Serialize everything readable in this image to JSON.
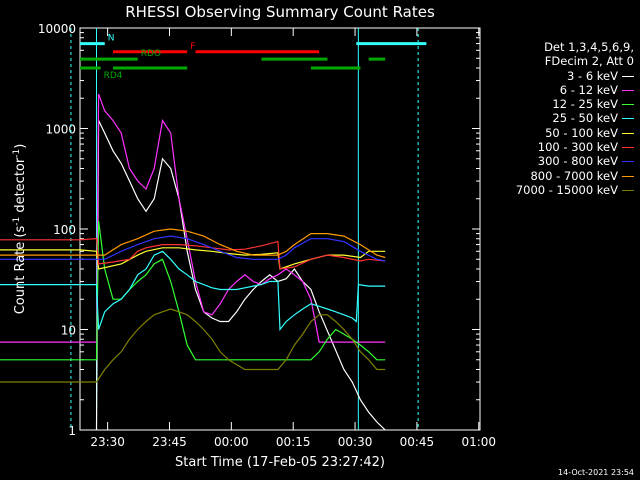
{
  "chart_data": {
    "type": "line",
    "title": "RHESSI Observing Summary Count Rates",
    "xlabel": "Start Time (17-Feb-05 23:27:42)",
    "ylabel_main": "Count Rate (s",
    "ylabel_sup1": "-1",
    "ylabel_mid": " detector",
    "ylabel_sup2": "-1",
    "ylabel_end": ")",
    "ylog": true,
    "ylim": [
      1,
      10000
    ],
    "x_minutes_range": [
      -20,
      77
    ],
    "x_tick_labels": [
      {
        "label": "23:30",
        "minute": 0
      },
      {
        "label": "23:45",
        "minute": 15
      },
      {
        "label": "00:00",
        "minute": 30
      },
      {
        "label": "00:15",
        "minute": 45
      },
      {
        "label": "00:30",
        "minute": 60
      },
      {
        "label": "00:45",
        "minute": 75
      },
      {
        "label": "01:00",
        "minute": 90
      }
    ],
    "y_tick_labels": [
      "1",
      "10",
      "100",
      "1000",
      "10000"
    ],
    "legend_header": [
      "Det 1,3,4,5,6,9,",
      "FDecim 2, Att 0"
    ],
    "series": [
      {
        "name": "3 - 6 keV",
        "color": "#ffffff",
        "points": [
          [
            -16,
            1.0
          ],
          [
            -15.5,
            1200
          ],
          [
            -14,
            900
          ],
          [
            -12,
            600
          ],
          [
            -10,
            450
          ],
          [
            -8,
            300
          ],
          [
            -6,
            200
          ],
          [
            -4,
            150
          ],
          [
            -2,
            200
          ],
          [
            0,
            500
          ],
          [
            2,
            400
          ],
          [
            4,
            200
          ],
          [
            6,
            60
          ],
          [
            8,
            25
          ],
          [
            10,
            15
          ],
          [
            12,
            13
          ],
          [
            14,
            12
          ],
          [
            16,
            12
          ],
          [
            18,
            15
          ],
          [
            20,
            20
          ],
          [
            22,
            25
          ],
          [
            24,
            30
          ],
          [
            26,
            35
          ],
          [
            28,
            30
          ],
          [
            30,
            32
          ],
          [
            32,
            40
          ],
          [
            34,
            30
          ],
          [
            36,
            25
          ],
          [
            38,
            15
          ],
          [
            44,
            4
          ],
          [
            46,
            3
          ],
          [
            48,
            2
          ],
          [
            50,
            1.5
          ],
          [
            52,
            1.2
          ],
          [
            54,
            1.0
          ]
        ]
      },
      {
        "name": "6 - 12 keV",
        "color": "#ff33ff",
        "points": [
          [
            -40,
            7.5
          ],
          [
            -20,
            7.5
          ],
          [
            -16,
            7.5
          ],
          [
            -15.5,
            2200
          ],
          [
            -14,
            1500
          ],
          [
            -12,
            1200
          ],
          [
            -10,
            900
          ],
          [
            -8,
            400
          ],
          [
            -6,
            300
          ],
          [
            -4,
            250
          ],
          [
            -2,
            400
          ],
          [
            0,
            1200
          ],
          [
            2,
            900
          ],
          [
            4,
            200
          ],
          [
            6,
            80
          ],
          [
            8,
            30
          ],
          [
            10,
            15
          ],
          [
            12,
            14
          ],
          [
            14,
            18
          ],
          [
            16,
            25
          ],
          [
            18,
            30
          ],
          [
            20,
            35
          ],
          [
            22,
            30
          ],
          [
            24,
            28
          ],
          [
            26,
            32
          ],
          [
            28,
            35
          ],
          [
            30,
            40
          ],
          [
            32,
            35
          ],
          [
            34,
            30
          ],
          [
            36,
            20
          ],
          [
            38,
            7.5
          ],
          [
            46,
            7.5
          ],
          [
            48,
            7.5
          ],
          [
            52,
            7.5
          ],
          [
            54,
            7.5
          ]
        ]
      },
      {
        "name": "12 - 25 keV",
        "color": "#33ff33",
        "points": [
          [
            -40,
            5
          ],
          [
            -20,
            5
          ],
          [
            -16,
            5
          ],
          [
            -15.5,
            120
          ],
          [
            -14,
            40
          ],
          [
            -12,
            20
          ],
          [
            -10,
            20
          ],
          [
            -8,
            25
          ],
          [
            -6,
            30
          ],
          [
            -4,
            35
          ],
          [
            -2,
            45
          ],
          [
            0,
            50
          ],
          [
            2,
            30
          ],
          [
            4,
            15
          ],
          [
            6,
            7
          ],
          [
            8,
            5
          ],
          [
            10,
            5
          ],
          [
            12,
            5
          ],
          [
            20,
            5
          ],
          [
            28,
            5
          ],
          [
            32,
            5
          ],
          [
            36,
            5
          ],
          [
            38,
            6
          ],
          [
            40,
            8
          ],
          [
            42,
            10
          ],
          [
            44,
            9
          ],
          [
            46,
            8
          ],
          [
            48,
            7
          ],
          [
            50,
            6
          ],
          [
            52,
            5
          ],
          [
            54,
            5
          ]
        ]
      },
      {
        "name": "25 - 50 keV",
        "color": "#33ffff",
        "points": [
          [
            -40,
            28
          ],
          [
            -20,
            28
          ],
          [
            -16,
            28
          ],
          [
            -15.5,
            10
          ],
          [
            -14,
            15
          ],
          [
            -12,
            18
          ],
          [
            -10,
            20
          ],
          [
            -8,
            25
          ],
          [
            -6,
            35
          ],
          [
            -4,
            40
          ],
          [
            -2,
            55
          ],
          [
            0,
            60
          ],
          [
            2,
            50
          ],
          [
            4,
            40
          ],
          [
            6,
            35
          ],
          [
            8,
            30
          ],
          [
            10,
            28
          ],
          [
            12,
            26
          ],
          [
            14,
            25
          ],
          [
            16,
            25
          ],
          [
            18,
            25
          ],
          [
            20,
            26
          ],
          [
            22,
            27
          ],
          [
            24,
            28
          ],
          [
            26,
            30
          ],
          [
            28,
            30
          ],
          [
            28.5,
            10
          ],
          [
            30,
            12
          ],
          [
            32,
            14
          ],
          [
            34,
            16
          ],
          [
            36,
            18
          ],
          [
            38,
            17
          ],
          [
            40,
            16
          ],
          [
            42,
            15
          ],
          [
            44,
            14
          ],
          [
            46,
            13
          ],
          [
            47,
            12
          ],
          [
            47.5,
            28
          ],
          [
            50,
            27
          ],
          [
            54,
            27
          ]
        ]
      },
      {
        "name": "50 - 100 keV",
        "color": "#ffff33",
        "points": [
          [
            -40,
            62
          ],
          [
            -20,
            62
          ],
          [
            -16,
            60
          ],
          [
            -15.5,
            40
          ],
          [
            -10,
            45
          ],
          [
            -6,
            55
          ],
          [
            -4,
            60
          ],
          [
            0,
            65
          ],
          [
            4,
            65
          ],
          [
            8,
            62
          ],
          [
            12,
            60
          ],
          [
            16,
            57
          ],
          [
            20,
            55
          ],
          [
            24,
            56
          ],
          [
            28,
            58
          ],
          [
            28.5,
            40
          ],
          [
            32,
            45
          ],
          [
            36,
            50
          ],
          [
            40,
            55
          ],
          [
            44,
            55
          ],
          [
            48,
            52
          ],
          [
            50,
            60
          ],
          [
            54,
            60
          ]
        ]
      },
      {
        "name": "100 - 300 keV",
        "color": "#ff3333",
        "points": [
          [
            -40,
            78
          ],
          [
            -20,
            78
          ],
          [
            -16,
            80
          ],
          [
            -15.5,
            45
          ],
          [
            -12,
            47
          ],
          [
            -8,
            50
          ],
          [
            -6,
            60
          ],
          [
            -4,
            65
          ],
          [
            0,
            70
          ],
          [
            4,
            70
          ],
          [
            8,
            68
          ],
          [
            12,
            65
          ],
          [
            16,
            62
          ],
          [
            20,
            63
          ],
          [
            24,
            68
          ],
          [
            28,
            75
          ],
          [
            28.5,
            40
          ],
          [
            32,
            42
          ],
          [
            36,
            50
          ],
          [
            40,
            55
          ],
          [
            44,
            52
          ],
          [
            48,
            48
          ],
          [
            50,
            50
          ],
          [
            54,
            48
          ]
        ]
      },
      {
        "name": "300 - 800 keV",
        "color": "#3333ff",
        "points": [
          [
            -40,
            50
          ],
          [
            -20,
            50
          ],
          [
            -14,
            50
          ],
          [
            -10,
            60
          ],
          [
            -6,
            70
          ],
          [
            -2,
            80
          ],
          [
            2,
            85
          ],
          [
            6,
            80
          ],
          [
            10,
            70
          ],
          [
            14,
            60
          ],
          [
            18,
            52
          ],
          [
            22,
            50
          ],
          [
            26,
            50
          ],
          [
            28,
            50
          ],
          [
            30,
            55
          ],
          [
            32,
            65
          ],
          [
            36,
            80
          ],
          [
            40,
            80
          ],
          [
            44,
            75
          ],
          [
            48,
            60
          ],
          [
            52,
            50
          ],
          [
            54,
            48
          ]
        ]
      },
      {
        "name": "800 - 7000 keV",
        "color": "#ff9900",
        "points": [
          [
            -40,
            55
          ],
          [
            -20,
            55
          ],
          [
            -14,
            55
          ],
          [
            -10,
            70
          ],
          [
            -6,
            80
          ],
          [
            -2,
            95
          ],
          [
            2,
            100
          ],
          [
            6,
            95
          ],
          [
            10,
            85
          ],
          [
            14,
            70
          ],
          [
            18,
            60
          ],
          [
            22,
            55
          ],
          [
            26,
            55
          ],
          [
            28,
            55
          ],
          [
            30,
            60
          ],
          [
            32,
            70
          ],
          [
            36,
            90
          ],
          [
            40,
            90
          ],
          [
            44,
            85
          ],
          [
            48,
            70
          ],
          [
            52,
            55
          ],
          [
            54,
            52
          ]
        ]
      },
      {
        "name": "7000 - 15000 keV",
        "color": "#808000",
        "points": [
          [
            -40,
            3
          ],
          [
            -20,
            3
          ],
          [
            -16,
            3
          ],
          [
            -14,
            4
          ],
          [
            -12,
            5
          ],
          [
            -10,
            6
          ],
          [
            -8,
            8
          ],
          [
            -6,
            10
          ],
          [
            -4,
            12
          ],
          [
            -2,
            14
          ],
          [
            0,
            15
          ],
          [
            2,
            16
          ],
          [
            4,
            15
          ],
          [
            6,
            14
          ],
          [
            8,
            12
          ],
          [
            10,
            10
          ],
          [
            12,
            8
          ],
          [
            14,
            6
          ],
          [
            16,
            5
          ],
          [
            20,
            4
          ],
          [
            24,
            4
          ],
          [
            28,
            4
          ],
          [
            30,
            5
          ],
          [
            32,
            7
          ],
          [
            34,
            9
          ],
          [
            36,
            12
          ],
          [
            38,
            14
          ],
          [
            40,
            14
          ],
          [
            42,
            12
          ],
          [
            44,
            10
          ],
          [
            46,
            8
          ],
          [
            48,
            6
          ],
          [
            50,
            5
          ],
          [
            52,
            4
          ],
          [
            54,
            4
          ]
        ]
      }
    ],
    "flags": [
      {
        "label": "N",
        "color": "#33ffff",
        "segments": [
          [
            -20,
            -14
          ],
          [
            47,
            64
          ]
        ],
        "level": 7000
      },
      {
        "label": "F",
        "color": "#ff0000",
        "segments": [
          [
            -12,
            6
          ],
          [
            8,
            38
          ]
        ],
        "level": 5800
      },
      {
        "label": "RDO",
        "color": "#00aa00",
        "segments": [
          [
            -20,
            -6
          ],
          [
            24,
            40
          ],
          [
            50,
            54
          ]
        ],
        "level": 4900
      },
      {
        "label": "RD4",
        "color": "#00aa00",
        "segments": [
          [
            -20,
            -15
          ],
          [
            -12,
            6
          ],
          [
            36,
            48
          ]
        ],
        "level": 4000
      }
    ],
    "legend_placement": "right"
  },
  "timestamp": "14-Oct-2021 23:54"
}
